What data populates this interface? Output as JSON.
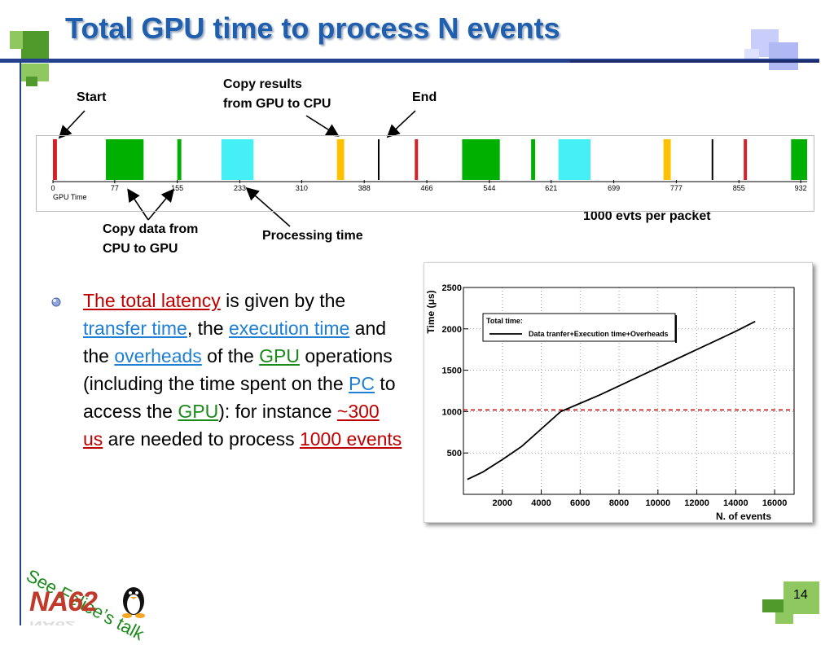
{
  "slide": {
    "title": "Total GPU time to process N events",
    "page_number": "14",
    "side_note": "See Felice’s talk",
    "logo_text": "NA62"
  },
  "annotations": {
    "start": "Start",
    "copy_results_line1": "Copy results",
    "copy_results_line2": "from GPU to CPU",
    "end": "End",
    "copy_data_line1": "Copy data from",
    "copy_data_line2": "CPU to GPU",
    "processing_time": "Processing time",
    "evts_per_packet": "1000 evts per packet"
  },
  "bullet": {
    "segments": [
      {
        "text": "The total latency",
        "style": "red ul"
      },
      {
        "text": " is given by the ",
        "style": ""
      },
      {
        "text": "transfer time",
        "style": "blue ul"
      },
      {
        "text": ", the ",
        "style": ""
      },
      {
        "text": "execution time",
        "style": "blue ul"
      },
      {
        "text": " and the ",
        "style": ""
      },
      {
        "text": "overheads",
        "style": "blue ul"
      },
      {
        "text": " of the ",
        "style": ""
      },
      {
        "text": "GPU",
        "style": "green ul"
      },
      {
        "text": " operations (including the time spent on the ",
        "style": ""
      },
      {
        "text": "PC",
        "style": "blue ul"
      },
      {
        "text": " to access the ",
        "style": ""
      },
      {
        "text": "GPU",
        "style": "green ul"
      },
      {
        "text": "): for instance ",
        "style": ""
      },
      {
        "text": "~300 us",
        "style": "red ul"
      },
      {
        "text": " are needed to process ",
        "style": ""
      },
      {
        "text": "1000 events",
        "style": "red ul"
      }
    ]
  },
  "chart_data": [
    {
      "type": "timeline",
      "xlabel": "GPU Time",
      "xlim": [
        0,
        940
      ],
      "tick_labels": [
        "0",
        "77",
        "155",
        "233",
        "310",
        "388",
        "466",
        "544",
        "621",
        "699",
        "777",
        "855",
        "932"
      ],
      "tick_values": [
        0,
        77,
        155,
        233,
        310,
        388,
        466,
        544,
        621,
        699,
        777,
        855,
        932
      ],
      "segments": [
        {
          "start": 0,
          "end": 5,
          "color": "#d81f26"
        },
        {
          "start": 66,
          "end": 113,
          "color": "#00b000"
        },
        {
          "start": 155,
          "end": 160,
          "color": "#00b000"
        },
        {
          "start": 210,
          "end": 250,
          "color": "#44f0f6"
        },
        {
          "start": 354,
          "end": 363,
          "color": "#ffc000"
        },
        {
          "start": 405,
          "end": 407,
          "color": "#000000"
        },
        {
          "start": 451,
          "end": 455,
          "color": "#d81f26"
        },
        {
          "start": 510,
          "end": 557,
          "color": "#00b000"
        },
        {
          "start": 596,
          "end": 601,
          "color": "#00b000"
        },
        {
          "start": 630,
          "end": 670,
          "color": "#44f0f6"
        },
        {
          "start": 761,
          "end": 770,
          "color": "#ffc000"
        },
        {
          "start": 821,
          "end": 823,
          "color": "#000000"
        },
        {
          "start": 861,
          "end": 865,
          "color": "#d81f26"
        },
        {
          "start": 920,
          "end": 940,
          "color": "#00b000"
        }
      ]
    },
    {
      "type": "line",
      "xlabel": "N. of events",
      "ylabel": "Time (μs)",
      "xlim": [
        0,
        17000
      ],
      "ylim": [
        0,
        2500
      ],
      "x_ticks": [
        2000,
        4000,
        6000,
        8000,
        10000,
        12000,
        14000,
        16000
      ],
      "y_ticks": [
        500,
        1000,
        1500,
        2000,
        2500
      ],
      "grid": true,
      "legend": {
        "title": "Total time:",
        "placement": "top-left"
      },
      "series": [
        {
          "name": "Data tranfer+Execution time+Overheads",
          "color": "#000000",
          "x": [
            200,
            1000,
            2000,
            3000,
            4000,
            5000,
            6000,
            7000,
            8000,
            9000,
            10000,
            11000,
            12000,
            13000,
            14000,
            15000
          ],
          "y": [
            180,
            270,
            420,
            580,
            790,
            1000,
            1100,
            1200,
            1310,
            1420,
            1530,
            1640,
            1750,
            1860,
            1970,
            2090
          ]
        }
      ],
      "reference_line": {
        "y": 1020,
        "color": "#c00000"
      }
    }
  ],
  "colors": {
    "title": "#1f5fae",
    "accent_red": "#c00000",
    "accent_blue": "#1f7fd4",
    "accent_green": "#1a8a1a"
  }
}
